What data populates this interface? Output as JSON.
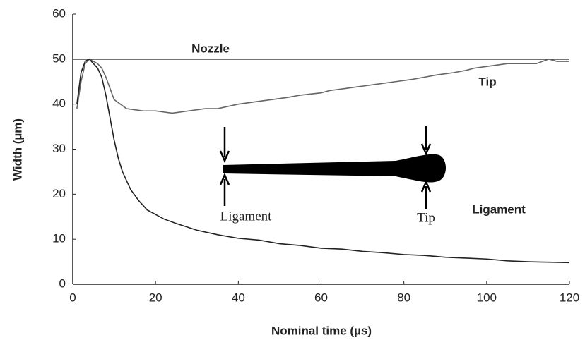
{
  "chart_data": {
    "type": "line",
    "xlabel": "Nominal time (µs)",
    "ylabel": "Width (µm)",
    "xlim": [
      0,
      120
    ],
    "xticks": [
      0,
      20,
      40,
      60,
      80,
      100,
      120
    ],
    "ylim": [
      0,
      60
    ],
    "yticks": [
      0,
      10,
      20,
      30,
      40,
      50,
      60
    ],
    "series": [
      {
        "name": "Nozzle",
        "color": "#222222",
        "x": [
          0,
          120
        ],
        "values": [
          50,
          50
        ]
      },
      {
        "name": "Tip",
        "color": "#666666",
        "x": [
          1,
          2,
          3,
          4,
          5,
          6,
          7,
          8,
          10,
          13,
          17,
          20,
          24,
          28,
          32,
          35,
          40,
          44,
          48,
          52,
          55,
          60,
          62,
          66,
          70,
          74,
          78,
          82,
          85,
          88,
          92,
          95,
          97,
          101,
          105,
          108,
          112,
          115,
          117,
          120
        ],
        "values": [
          39,
          45,
          49,
          50,
          49.5,
          49,
          48,
          46,
          41,
          39,
          38.5,
          38.5,
          38,
          38.5,
          39,
          39,
          40,
          40.5,
          41,
          41.5,
          42,
          42.5,
          43,
          43.5,
          44,
          44.5,
          45,
          45.5,
          46,
          46.5,
          47,
          47.5,
          48,
          48.5,
          49,
          49,
          49,
          50,
          49.5,
          49.5
        ]
      },
      {
        "name": "Ligament",
        "color": "#222222",
        "x": [
          1,
          2,
          3,
          4,
          5,
          6,
          7,
          8,
          9,
          10,
          11,
          12,
          13,
          14,
          16,
          18,
          20,
          22,
          25,
          30,
          35,
          40,
          45,
          50,
          55,
          60,
          65,
          70,
          75,
          80,
          85,
          90,
          95,
          100,
          105,
          110,
          115,
          120
        ],
        "values": [
          40,
          47,
          49.5,
          50,
          49,
          48,
          46,
          42,
          37,
          32,
          28,
          25,
          23,
          21,
          18.5,
          16.5,
          15.5,
          14.5,
          13.5,
          12,
          11,
          10.2,
          9.8,
          9,
          8.6,
          8,
          7.8,
          7.3,
          7,
          6.6,
          6.4,
          6,
          5.8,
          5.6,
          5.2,
          5,
          4.9,
          4.8
        ]
      }
    ],
    "inset_labels": [
      "Ligament",
      "Tip"
    ]
  }
}
